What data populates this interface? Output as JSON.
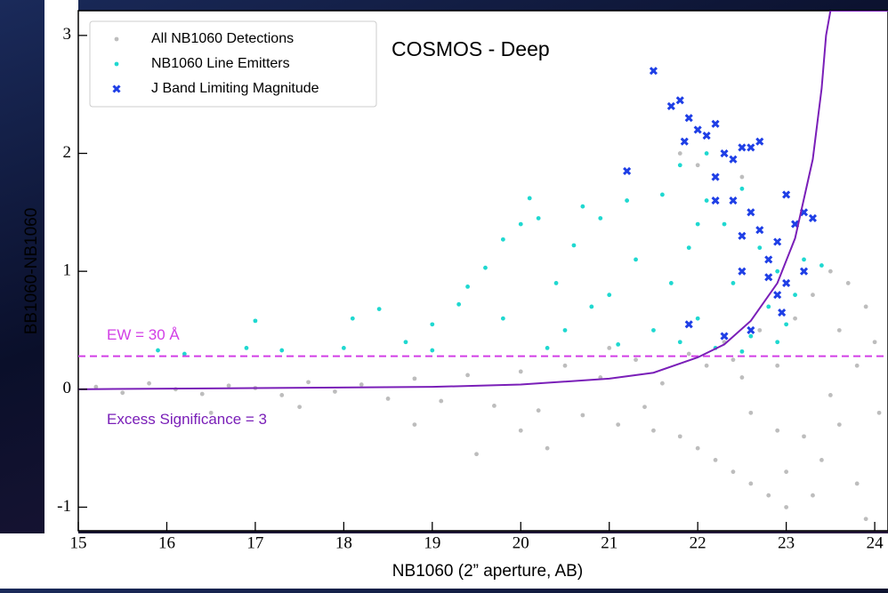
{
  "chart_data": {
    "type": "scatter",
    "title": "COSMOS - Deep",
    "x_label": "NB1060 (2” aperture, AB)",
    "y_label": "BB1060-NB1060",
    "xlim": [
      15,
      24.15
    ],
    "ylim": [
      -1.2,
      3.21
    ],
    "xticks": [
      15,
      16,
      17,
      18,
      19,
      20,
      21,
      22,
      23,
      24
    ],
    "yticks": [
      -1,
      0,
      1,
      2,
      3
    ],
    "legend": "upper left",
    "series": [
      {
        "name": "All NB1060 Detections",
        "color": "#bdbdbd",
        "marker": "o",
        "x": [
          15.2,
          15.5,
          15.8,
          16.1,
          16.4,
          16.7,
          17.0,
          17.3,
          17.6,
          17.9,
          18.2,
          18.5,
          18.8,
          19.1,
          19.4,
          19.7,
          20.0,
          20.2,
          20.5,
          20.7,
          20.9,
          21.1,
          21.3,
          21.5,
          21.6,
          21.8,
          21.9,
          22.0,
          22.1,
          22.2,
          22.3,
          22.4,
          22.5,
          22.6,
          22.7,
          22.8,
          22.9,
          23.0,
          23.1,
          23.2,
          23.3,
          23.4,
          23.5,
          23.6,
          23.7,
          23.8,
          23.9,
          23.9,
          24.0,
          24.05,
          22.5,
          22.0,
          21.8,
          19.5,
          20.3,
          18.8,
          17.5,
          16.5,
          21.0,
          20.0,
          22.9,
          22.4,
          23.6,
          23.0,
          22.6,
          21.4,
          23.3,
          23.8,
          23.5
        ],
        "y": [
          0.02,
          -0.03,
          0.05,
          0.0,
          -0.04,
          0.03,
          0.01,
          -0.05,
          0.06,
          -0.02,
          0.04,
          -0.08,
          0.09,
          -0.1,
          0.12,
          -0.14,
          0.15,
          -0.18,
          0.2,
          -0.22,
          0.1,
          -0.3,
          0.25,
          -0.35,
          0.05,
          -0.4,
          0.3,
          -0.5,
          0.2,
          -0.6,
          0.4,
          -0.7,
          0.1,
          -0.8,
          0.5,
          -0.9,
          0.2,
          -1.0,
          0.6,
          -0.4,
          0.8,
          -0.6,
          1.0,
          -0.3,
          0.9,
          -0.8,
          0.7,
          -1.1,
          0.4,
          -0.2,
          1.8,
          1.9,
          2.0,
          -0.55,
          -0.5,
          -0.3,
          -0.15,
          -0.2,
          0.35,
          -0.35,
          -0.35,
          0.25,
          0.5,
          -0.7,
          -0.2,
          -0.15,
          -0.9,
          0.2,
          -0.05
        ]
      },
      {
        "name": "NB1060 Line Emitters",
        "color": "#1fd8d0",
        "marker": "o",
        "x": [
          15.9,
          16.2,
          16.9,
          17.0,
          17.3,
          18.0,
          18.1,
          18.4,
          18.7,
          19.0,
          19.3,
          19.4,
          19.6,
          19.8,
          19.8,
          20.0,
          20.1,
          20.2,
          20.4,
          20.5,
          20.6,
          20.7,
          20.9,
          21.0,
          21.2,
          21.3,
          21.5,
          21.5,
          21.6,
          21.7,
          21.8,
          21.9,
          22.0,
          22.1,
          22.1,
          22.2,
          22.3,
          22.4,
          22.5,
          22.6,
          22.7,
          22.8,
          22.9,
          23.0,
          23.1,
          23.2,
          23.4,
          20.3,
          19.0,
          21.1,
          22.5,
          21.8,
          20.8,
          22.9,
          22.0
        ],
        "y": [
          0.33,
          0.3,
          0.35,
          0.58,
          0.33,
          0.35,
          0.6,
          0.68,
          0.4,
          0.55,
          0.72,
          0.87,
          1.03,
          0.6,
          1.27,
          1.4,
          1.62,
          1.45,
          0.9,
          0.5,
          1.22,
          1.55,
          1.45,
          0.8,
          1.6,
          1.1,
          2.7,
          0.5,
          1.65,
          0.9,
          1.9,
          1.2,
          0.6,
          1.6,
          2.0,
          0.35,
          1.4,
          0.9,
          1.7,
          0.45,
          1.2,
          0.7,
          1.0,
          0.55,
          0.8,
          1.1,
          1.05,
          0.35,
          0.33,
          0.38,
          0.32,
          0.4,
          0.7,
          0.4,
          1.4
        ]
      },
      {
        "name": "J Band Limiting Magnitude",
        "color": "#1f3fe6",
        "marker": "X",
        "x": [
          21.2,
          21.5,
          21.7,
          21.8,
          21.9,
          22.0,
          21.85,
          22.1,
          22.2,
          22.3,
          22.4,
          22.5,
          22.6,
          22.7,
          22.2,
          22.4,
          22.5,
          22.6,
          22.7,
          22.8,
          22.9,
          23.0,
          23.1,
          23.2,
          23.3,
          23.0,
          22.8,
          22.9,
          22.6,
          22.3,
          22.2,
          21.9,
          22.95,
          23.2,
          22.5
        ],
        "y": [
          1.85,
          2.7,
          2.4,
          2.45,
          2.3,
          2.2,
          2.1,
          2.15,
          2.25,
          2.0,
          1.95,
          2.05,
          2.05,
          2.1,
          1.8,
          1.6,
          1.3,
          1.5,
          1.35,
          1.1,
          1.25,
          1.65,
          1.4,
          1.5,
          1.45,
          0.9,
          0.95,
          0.8,
          0.5,
          0.45,
          1.6,
          0.55,
          0.65,
          1.0,
          1.0
        ]
      }
    ],
    "annotations": [
      {
        "text": "EW = 30 Å",
        "y": 0.28,
        "color": "#d23ee6"
      },
      {
        "text": "Excess Significance = 3",
        "color": "#7a1fb8",
        "x": [
          15,
          17,
          19,
          20,
          21,
          21.5,
          22,
          22.3,
          22.6,
          22.9,
          23.1,
          23.3,
          23.4,
          23.45,
          23.5,
          24.15
        ],
        "y": [
          0.0,
          0.01,
          0.02,
          0.04,
          0.09,
          0.14,
          0.27,
          0.38,
          0.58,
          0.9,
          1.28,
          1.95,
          2.55,
          3.0,
          3.21,
          3.21
        ]
      }
    ]
  }
}
